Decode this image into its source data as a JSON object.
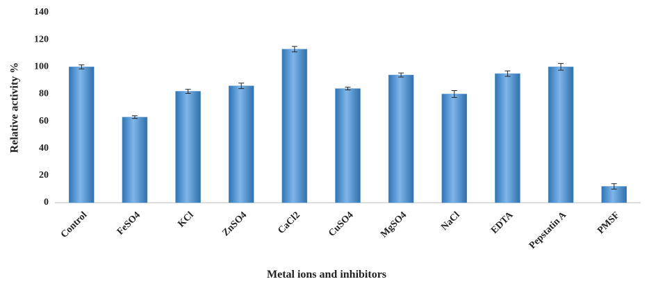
{
  "chart_data": {
    "type": "bar",
    "categories": [
      "Control",
      "FeSO4",
      "KCl",
      "ZnSO4",
      "CaCl2",
      "CuSO4",
      "MgSO4",
      "NaCl",
      "EDTA",
      "Pepstatin A",
      "PMSF"
    ],
    "values": [
      100,
      63,
      82,
      86,
      113,
      84,
      94,
      80,
      95,
      100,
      12
    ],
    "errors": [
      1.5,
      1,
      1.5,
      2,
      2,
      1,
      1.5,
      2.5,
      2,
      2.5,
      2
    ],
    "color": "#5b9bd5",
    "ylim": [
      0,
      140
    ],
    "yticks": [
      0,
      20,
      40,
      60,
      80,
      100,
      120,
      140
    ],
    "x_label": "Metal ions and inhibitors",
    "y_label": "Relative activity %",
    "grid": false
  }
}
